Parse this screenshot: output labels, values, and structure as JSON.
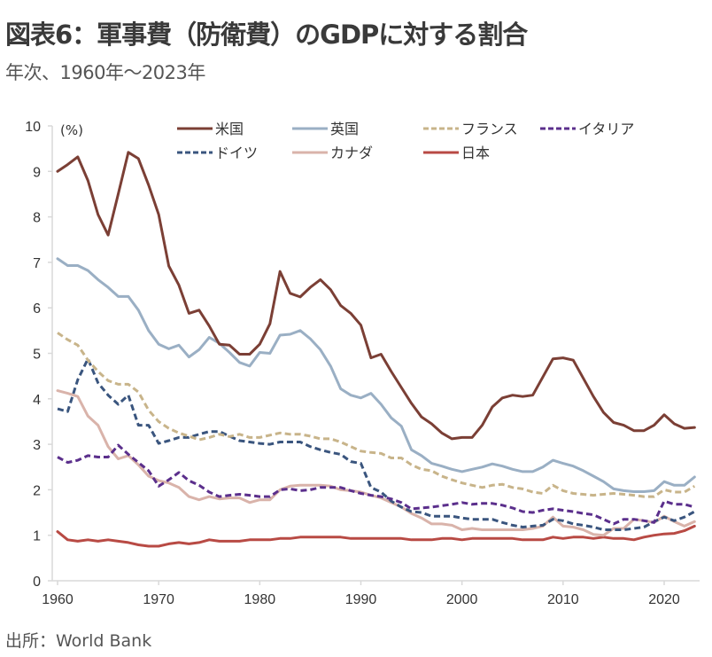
{
  "title": "図表6：軍事費（防衛費）のGDPに対する割合",
  "subtitle": "年次、1960年～2023年",
  "source": "出所：World Bank",
  "chart_data": {
    "type": "line",
    "title": "図表6：軍事費（防衛費）のGDPに対する割合",
    "subtitle": "年次、1960年～2023年",
    "xlabel": "",
    "ylabel": "(%)",
    "xlim": [
      1960,
      2023
    ],
    "ylim": [
      0,
      10
    ],
    "x_ticks": [
      1960,
      1970,
      1980,
      1990,
      2000,
      2010,
      2020
    ],
    "y_ticks": [
      0,
      1,
      2,
      3,
      4,
      5,
      6,
      7,
      8,
      9,
      10
    ],
    "grid": false,
    "legend_position": "top",
    "x": [
      1960,
      1961,
      1962,
      1963,
      1964,
      1965,
      1966,
      1967,
      1968,
      1969,
      1970,
      1971,
      1972,
      1973,
      1974,
      1975,
      1976,
      1977,
      1978,
      1979,
      1980,
      1981,
      1982,
      1983,
      1984,
      1985,
      1986,
      1987,
      1988,
      1989,
      1990,
      1991,
      1992,
      1993,
      1994,
      1995,
      1996,
      1997,
      1998,
      1999,
      2000,
      2001,
      2002,
      2003,
      2004,
      2005,
      2006,
      2007,
      2008,
      2009,
      2010,
      2011,
      2012,
      2013,
      2014,
      2015,
      2016,
      2017,
      2018,
      2019,
      2020,
      2021,
      2022,
      2023
    ],
    "series": [
      {
        "name": "米国",
        "color": "#7b3f35",
        "dashed": false,
        "values": [
          9.0,
          9.15,
          9.32,
          8.8,
          8.05,
          7.6,
          8.5,
          9.42,
          9.28,
          8.7,
          8.05,
          6.92,
          6.5,
          5.88,
          5.95,
          5.6,
          5.2,
          5.18,
          4.98,
          4.98,
          5.2,
          5.65,
          6.8,
          6.32,
          6.24,
          6.45,
          6.62,
          6.4,
          6.05,
          5.88,
          5.62,
          4.9,
          4.98,
          4.6,
          4.25,
          3.9,
          3.6,
          3.45,
          3.25,
          3.12,
          3.15,
          3.15,
          3.42,
          3.82,
          4.02,
          4.08,
          4.05,
          4.08,
          4.48,
          4.88,
          4.9,
          4.85,
          4.45,
          4.05,
          3.7,
          3.48,
          3.42,
          3.3,
          3.3,
          3.42,
          3.65,
          3.45,
          3.35,
          3.37
        ]
      },
      {
        "name": "英国",
        "color": "#9aafc4",
        "dashed": false,
        "values": [
          7.08,
          6.93,
          6.93,
          6.82,
          6.62,
          6.45,
          6.25,
          6.25,
          5.95,
          5.5,
          5.2,
          5.1,
          5.18,
          4.92,
          5.08,
          5.35,
          5.22,
          5.02,
          4.8,
          4.72,
          5.02,
          5.0,
          5.4,
          5.42,
          5.5,
          5.32,
          5.08,
          4.72,
          4.22,
          4.08,
          4.02,
          4.12,
          3.88,
          3.58,
          3.4,
          2.88,
          2.75,
          2.58,
          2.52,
          2.45,
          2.4,
          2.45,
          2.5,
          2.57,
          2.52,
          2.45,
          2.4,
          2.4,
          2.5,
          2.65,
          2.58,
          2.52,
          2.42,
          2.3,
          2.18,
          2.02,
          1.98,
          1.96,
          1.96,
          1.98,
          2.18,
          2.1,
          2.1,
          2.28
        ]
      },
      {
        "name": "フランス",
        "color": "#c8b48a",
        "dashed": true,
        "values": [
          5.45,
          5.3,
          5.18,
          4.85,
          4.6,
          4.4,
          4.32,
          4.32,
          4.15,
          3.75,
          3.5,
          3.35,
          3.25,
          3.18,
          3.1,
          3.15,
          3.22,
          3.17,
          3.22,
          3.15,
          3.15,
          3.2,
          3.25,
          3.22,
          3.22,
          3.18,
          3.12,
          3.12,
          3.05,
          2.95,
          2.85,
          2.82,
          2.8,
          2.7,
          2.7,
          2.55,
          2.45,
          2.42,
          2.3,
          2.22,
          2.15,
          2.1,
          2.05,
          2.1,
          2.12,
          2.05,
          2.02,
          1.95,
          1.92,
          2.1,
          1.98,
          1.92,
          1.9,
          1.88,
          1.9,
          1.92,
          1.9,
          1.88,
          1.85,
          1.85,
          2.0,
          1.95,
          1.95,
          2.08
        ]
      },
      {
        "name": "イタリア",
        "color": "#5b2f8c",
        "dashed": true,
        "values": [
          2.72,
          2.6,
          2.65,
          2.75,
          2.72,
          2.72,
          2.98,
          2.78,
          2.6,
          2.42,
          2.08,
          2.22,
          2.38,
          2.2,
          2.1,
          1.95,
          1.85,
          1.88,
          1.9,
          1.88,
          1.85,
          1.85,
          2.0,
          2.02,
          1.98,
          2.0,
          2.05,
          2.05,
          2.05,
          1.98,
          1.92,
          1.88,
          1.85,
          1.8,
          1.72,
          1.58,
          1.6,
          1.62,
          1.65,
          1.68,
          1.72,
          1.68,
          1.7,
          1.7,
          1.66,
          1.6,
          1.52,
          1.5,
          1.55,
          1.58,
          1.55,
          1.52,
          1.48,
          1.45,
          1.35,
          1.25,
          1.35,
          1.35,
          1.32,
          1.28,
          1.75,
          1.68,
          1.68,
          1.62
        ]
      },
      {
        "name": "ドイツ",
        "color": "#3a557e",
        "dashed": true,
        "values": [
          3.78,
          3.72,
          4.42,
          4.88,
          4.35,
          4.08,
          3.88,
          4.08,
          3.42,
          3.42,
          3.02,
          3.08,
          3.15,
          3.15,
          3.22,
          3.28,
          3.28,
          3.18,
          3.08,
          3.05,
          3.02,
          3.0,
          3.05,
          3.05,
          3.05,
          2.95,
          2.88,
          2.82,
          2.78,
          2.62,
          2.58,
          2.05,
          1.95,
          1.75,
          1.62,
          1.52,
          1.5,
          1.42,
          1.42,
          1.42,
          1.38,
          1.35,
          1.35,
          1.35,
          1.28,
          1.22,
          1.18,
          1.2,
          1.22,
          1.35,
          1.32,
          1.25,
          1.22,
          1.18,
          1.12,
          1.12,
          1.12,
          1.15,
          1.18,
          1.3,
          1.4,
          1.32,
          1.4,
          1.52
        ]
      },
      {
        "name": "カナダ",
        "color": "#d9b3aa",
        "dashed": false,
        "values": [
          4.18,
          4.12,
          4.05,
          3.62,
          3.42,
          2.95,
          2.68,
          2.75,
          2.55,
          2.3,
          2.2,
          2.15,
          2.05,
          1.85,
          1.78,
          1.85,
          1.8,
          1.82,
          1.82,
          1.72,
          1.78,
          1.78,
          2.0,
          2.08,
          2.1,
          2.1,
          2.1,
          2.08,
          2.0,
          1.98,
          1.95,
          1.88,
          1.82,
          1.72,
          1.62,
          1.48,
          1.38,
          1.25,
          1.25,
          1.22,
          1.12,
          1.15,
          1.12,
          1.12,
          1.12,
          1.12,
          1.12,
          1.15,
          1.2,
          1.4,
          1.2,
          1.18,
          1.12,
          1.02,
          1.0,
          1.15,
          1.15,
          1.35,
          1.32,
          1.28,
          1.42,
          1.3,
          1.2,
          1.3
        ]
      },
      {
        "name": "日本",
        "color": "#b84a44",
        "dashed": false,
        "values": [
          1.08,
          0.9,
          0.87,
          0.9,
          0.87,
          0.9,
          0.87,
          0.84,
          0.79,
          0.76,
          0.76,
          0.81,
          0.84,
          0.81,
          0.84,
          0.9,
          0.87,
          0.87,
          0.87,
          0.9,
          0.9,
          0.9,
          0.93,
          0.93,
          0.96,
          0.96,
          0.96,
          0.96,
          0.96,
          0.93,
          0.93,
          0.93,
          0.93,
          0.93,
          0.93,
          0.9,
          0.9,
          0.9,
          0.93,
          0.93,
          0.9,
          0.93,
          0.93,
          0.93,
          0.93,
          0.93,
          0.9,
          0.9,
          0.9,
          0.96,
          0.93,
          0.96,
          0.96,
          0.93,
          0.96,
          0.93,
          0.93,
          0.9,
          0.96,
          1.0,
          1.03,
          1.04,
          1.1,
          1.2
        ]
      }
    ],
    "legend": [
      {
        "label": "米国",
        "series": 0
      },
      {
        "label": "英国",
        "series": 1
      },
      {
        "label": "フランス",
        "series": 2
      },
      {
        "label": "イタリア",
        "series": 3
      },
      {
        "label": "ドイツ",
        "series": 4
      },
      {
        "label": "カナダ",
        "series": 5
      },
      {
        "label": "日本",
        "series": 6
      }
    ]
  }
}
